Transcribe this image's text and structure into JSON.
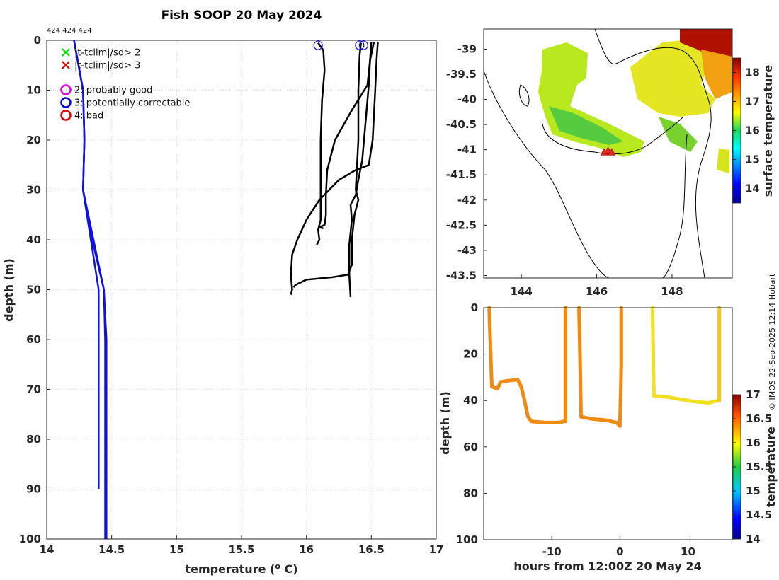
{
  "figure": {
    "title": "Fish SOOP 20 May 2024",
    "ids_label": "424 424 424",
    "credit": "© IMOS 22-Sep-2025 12:14 Hobart"
  },
  "legend": {
    "items": [
      {
        "marker": "x",
        "color": "#00dd00",
        "label": "|t-tclim|/sd> 2"
      },
      {
        "marker": "x",
        "color": "#dd0000",
        "label": "|t-tclim|/sd> 3"
      },
      {
        "marker": "o",
        "color": "#dd00dd",
        "label": "2: probably good"
      },
      {
        "marker": "o",
        "color": "#0000dd",
        "label": "3: potentially correctable"
      },
      {
        "marker": "o",
        "color": "#dd0000",
        "label": "4: bad"
      }
    ]
  },
  "chart_data": [
    {
      "id": "profile",
      "type": "line",
      "xlabel": "temperature (",
      "xlabel_sup": "o",
      "xlabel_tail": " C)",
      "ylabel": "depth (m)",
      "xlim": [
        14,
        17
      ],
      "ylim": [
        0,
        100
      ],
      "xticks": [
        "14",
        "14.5",
        "15",
        "15.5",
        "16",
        "16.5",
        "17"
      ],
      "yticks": [
        "0",
        "10",
        "20",
        "30",
        "40",
        "50",
        "60",
        "70",
        "80",
        "90",
        "100"
      ],
      "climatology": [
        {
          "name": "clim-a",
          "color": "#1010e0",
          "points": [
            [
              14.21,
              0
            ],
            [
              14.28,
              10
            ],
            [
              14.29,
              20
            ],
            [
              14.28,
              30
            ],
            [
              14.34,
              40
            ],
            [
              14.4,
              50
            ],
            [
              14.4,
              60
            ],
            [
              14.4,
              70
            ],
            [
              14.4,
              80
            ],
            [
              14.4,
              90
            ]
          ]
        },
        {
          "name": "clim-b",
          "color": "#1010e0",
          "points": [
            [
              14.21,
              0
            ],
            [
              14.28,
              10
            ],
            [
              14.29,
              20
            ],
            [
              14.28,
              30
            ],
            [
              14.36,
              40
            ],
            [
              14.44,
              50
            ],
            [
              14.45,
              60
            ],
            [
              14.45,
              70
            ],
            [
              14.45,
              80
            ],
            [
              14.45,
              90
            ],
            [
              14.45,
              100
            ]
          ]
        },
        {
          "name": "clim-c",
          "color": "#1010e0",
          "points": [
            [
              14.21,
              0
            ],
            [
              14.28,
              10
            ],
            [
              14.29,
              20
            ],
            [
              14.28,
              30
            ],
            [
              14.35,
              40
            ],
            [
              14.44,
              50
            ],
            [
              14.46,
              60
            ],
            [
              14.46,
              70
            ],
            [
              14.46,
              80
            ],
            [
              14.46,
              90
            ],
            [
              14.46,
              100
            ]
          ]
        }
      ],
      "profiles": [
        {
          "name": "profile-1",
          "color": "#000000",
          "points": [
            [
              16.09,
              0.5
            ],
            [
              16.13,
              2
            ],
            [
              16.14,
              6
            ],
            [
              16.12,
              12
            ],
            [
              16.11,
              20
            ],
            [
              16.11,
              30
            ],
            [
              16.11,
              36
            ],
            [
              16.09,
              38
            ],
            [
              16.1,
              40
            ],
            [
              16.08,
              41
            ]
          ]
        },
        {
          "name": "profile-2",
          "color": "#000000",
          "points": [
            [
              16.5,
              0.3
            ],
            [
              16.49,
              4
            ],
            [
              16.47,
              9
            ],
            [
              16.35,
              14
            ],
            [
              16.22,
              20
            ],
            [
              16.16,
              26
            ],
            [
              16.15,
              31
            ],
            [
              16.15,
              35
            ],
            [
              16.14,
              37
            ],
            [
              16.1,
              37.5
            ],
            [
              16.13,
              37.7
            ]
          ]
        },
        {
          "name": "profile-3",
          "color": "#000000",
          "points": [
            [
              16.52,
              0.3
            ],
            [
              16.49,
              4
            ],
            [
              16.48,
              9
            ],
            [
              16.45,
              18
            ],
            [
              16.43,
              24
            ],
            [
              16.4,
              28
            ],
            [
              16.38,
              31
            ],
            [
              16.34,
              33
            ],
            [
              16.35,
              36
            ],
            [
              16.33,
              41
            ],
            [
              16.33,
              47
            ],
            [
              16.34,
              51.5
            ]
          ]
        },
        {
          "name": "profile-4",
          "color": "#000000",
          "points": [
            [
              16.55,
              0.3
            ],
            [
              16.54,
              4
            ],
            [
              16.53,
              10
            ],
            [
              16.51,
              20
            ],
            [
              16.48,
              25
            ],
            [
              16.38,
              26
            ],
            [
              16.25,
              28
            ],
            [
              16.1,
              32
            ],
            [
              16.0,
              36
            ],
            [
              15.93,
              40
            ],
            [
              15.89,
              43
            ],
            [
              15.88,
              47
            ],
            [
              15.89,
              50
            ],
            [
              15.88,
              51
            ]
          ]
        },
        {
          "name": "profile-5",
          "color": "#000000",
          "points": [
            [
              16.42,
              0.5
            ],
            [
              16.41,
              3
            ],
            [
              16.4,
              10
            ],
            [
              16.4,
              20
            ],
            [
              16.38,
              30
            ],
            [
              16.4,
              32
            ],
            [
              16.37,
              35
            ],
            [
              16.35,
              40
            ],
            [
              16.35,
              45
            ],
            [
              16.32,
              47
            ],
            [
              16.2,
              47.5
            ],
            [
              16.0,
              48
            ],
            [
              15.92,
              49
            ],
            [
              15.9,
              49.5
            ]
          ]
        }
      ],
      "flag_markers": [
        {
          "x": 16.09,
          "y": 1,
          "flag": "3"
        },
        {
          "x": 16.41,
          "y": 1,
          "flag": "3"
        },
        {
          "x": 16.44,
          "y": 1,
          "flag": "3"
        }
      ]
    },
    {
      "id": "map",
      "type": "heatmap",
      "xlim": [
        143,
        149.6
      ],
      "ylim": [
        -43.55,
        -38.6
      ],
      "xticks": [
        "144",
        "146",
        "148"
      ],
      "yticks": [
        "-39",
        "-39.5",
        "-40",
        "-40.5",
        "-41",
        "-41.5",
        "-42",
        "-42.5",
        "-43",
        "-43.5"
      ],
      "colorbar_label": "surface temperature",
      "colorbar_range": [
        13.5,
        18.5
      ],
      "colorbar_ticks": [
        "14",
        "15",
        "16",
        "17",
        "18"
      ],
      "track": [
        [
          146.2,
          -41.05
        ],
        [
          146.3,
          -41.02
        ],
        [
          146.4,
          -41.05
        ]
      ]
    },
    {
      "id": "timeseries",
      "type": "scatter",
      "xlabel": "hours from 12:00Z 20 May 24",
      "ylabel": "depth (m)",
      "xlim": [
        -20,
        16.5
      ],
      "ylim": [
        0,
        100
      ],
      "xticks": [
        "-10",
        "0",
        "10"
      ],
      "yticks": [
        "0",
        "20",
        "40",
        "60",
        "80",
        "100"
      ],
      "colorbar_label": "temperature",
      "colorbar_range": [
        14,
        17
      ],
      "colorbar_ticks": [
        "14",
        "14.5",
        "15",
        "15.5",
        "16",
        "16.5",
        "17"
      ],
      "segments": [
        {
          "temp": 16.45,
          "points": [
            [
              -19.2,
              0
            ],
            [
              -19,
              18
            ],
            [
              -18.8,
              34
            ],
            [
              -18,
              35
            ],
            [
              -17.5,
              32
            ],
            [
              -16.5,
              31.5
            ],
            [
              -15,
              31
            ],
            [
              -14.5,
              34
            ],
            [
              -14,
              40
            ],
            [
              -13.5,
              47
            ],
            [
              -13,
              49
            ],
            [
              -11,
              49.5
            ],
            [
              -9,
              49.5
            ],
            [
              -8.2,
              49
            ]
          ]
        },
        {
          "temp": 16.55,
          "points": [
            [
              -8.0,
              49
            ],
            [
              -8.0,
              25
            ],
            [
              -8.0,
              0
            ]
          ]
        },
        {
          "temp": 16.5,
          "points": [
            [
              -6.0,
              0
            ],
            [
              -5.8,
              30
            ],
            [
              -5.7,
              47
            ],
            [
              -4,
              48
            ],
            [
              -2,
              48.5
            ],
            [
              -0.5,
              49.5
            ],
            [
              0,
              51
            ],
            [
              0.2,
              25
            ],
            [
              0.2,
              0
            ]
          ]
        },
        {
          "temp": 16.1,
          "points": [
            [
              4.8,
              0
            ],
            [
              4.9,
              20
            ],
            [
              5,
              38
            ],
            [
              7,
              38.5
            ],
            [
              9,
              39.5
            ],
            [
              11,
              40.5
            ],
            [
              13,
              41
            ],
            [
              14.5,
              40
            ]
          ]
        },
        {
          "temp": 16.2,
          "points": [
            [
              14.6,
              40
            ],
            [
              14.6,
              32
            ],
            [
              14.6,
              15
            ],
            [
              14.6,
              0
            ]
          ]
        }
      ]
    }
  ]
}
